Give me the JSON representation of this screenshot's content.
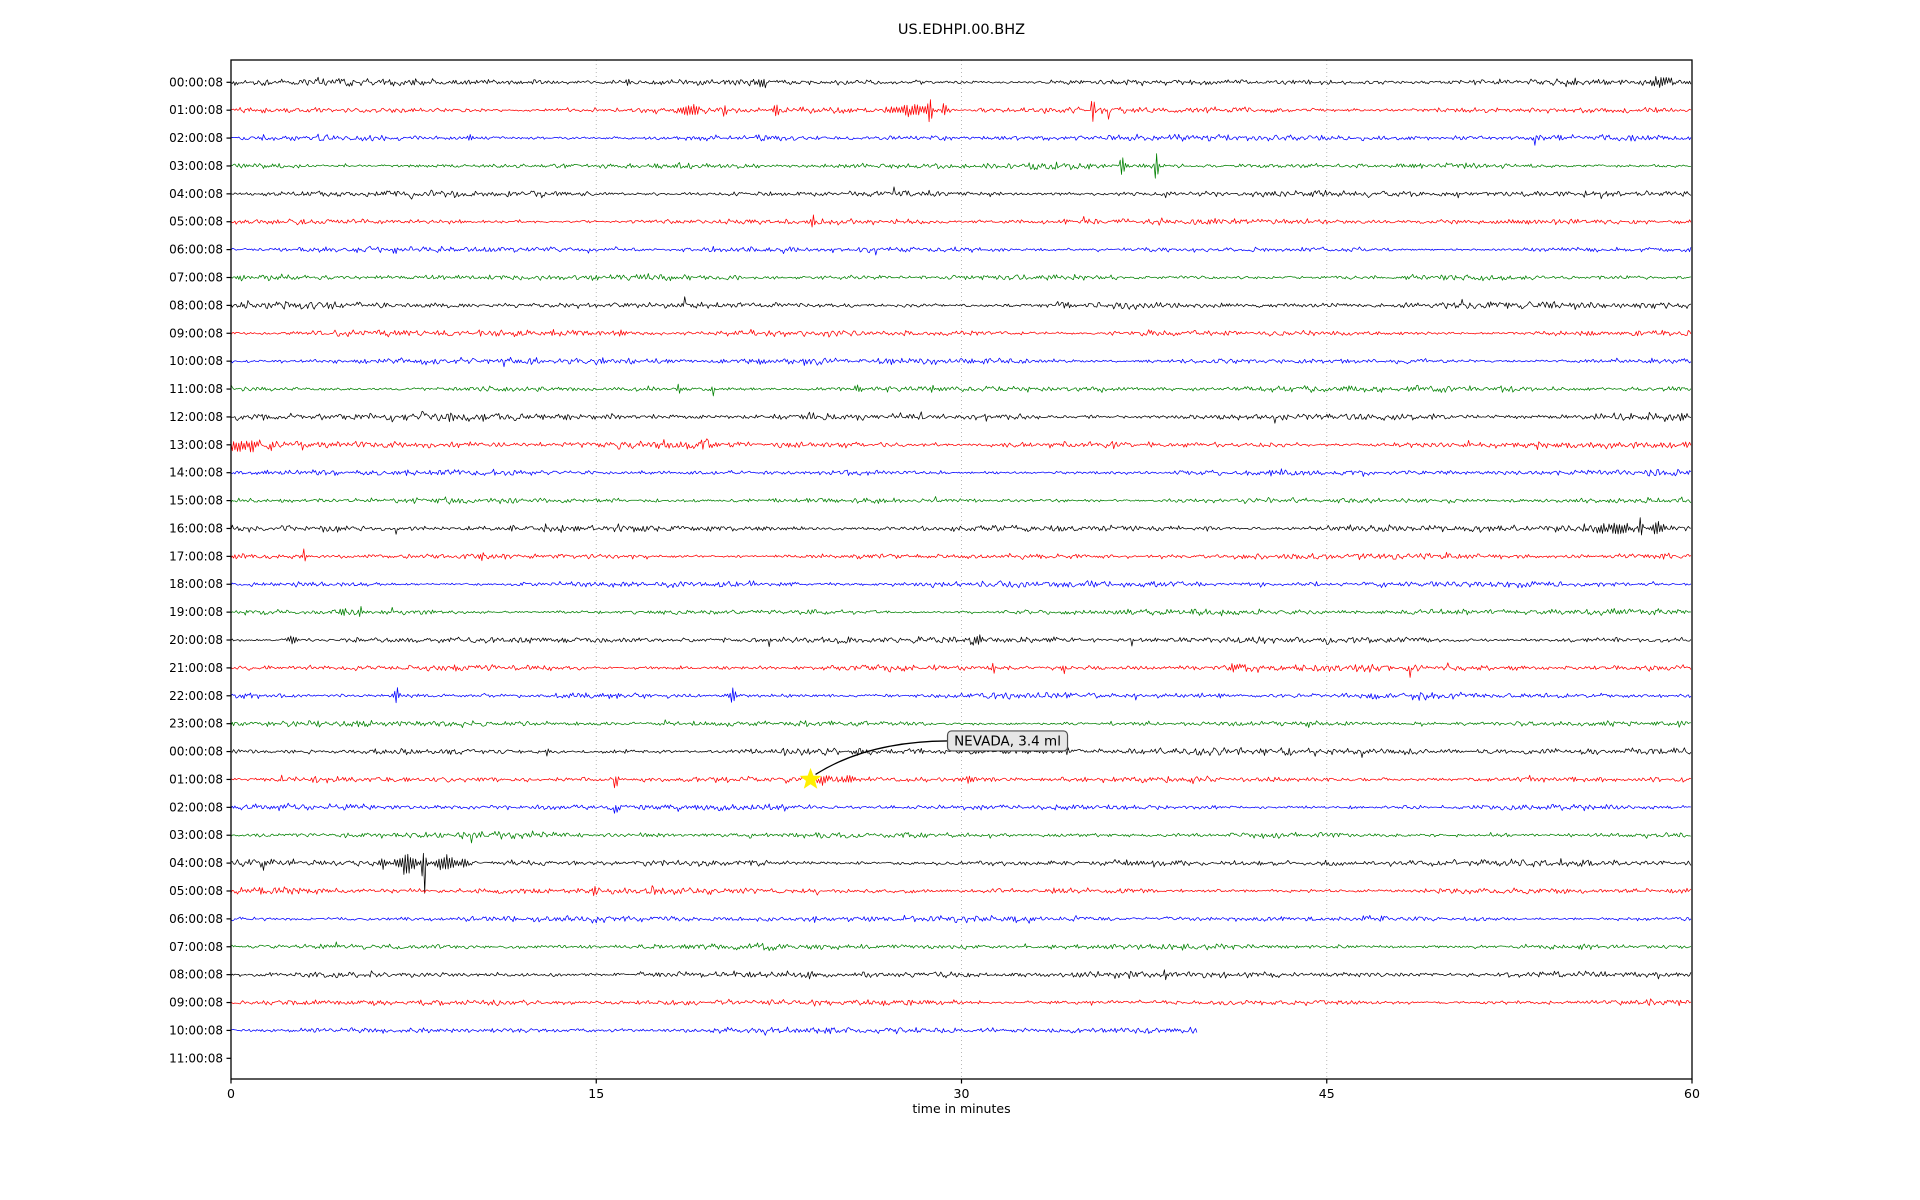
{
  "chart_data": {
    "type": "line",
    "subtype": "helicorder-day-plot",
    "title": "US.EDHPI.00.BHZ",
    "xlabel": "time in minutes",
    "xlim": [
      0,
      60
    ],
    "xticks": [
      "0",
      "15",
      "30",
      "45",
      "60"
    ],
    "xtick_values": [
      0,
      15,
      30,
      45,
      60
    ],
    "grid_x_minutes": [
      15,
      30,
      45
    ],
    "grid_style": "dotted",
    "legend": "none",
    "trace_color_cycle": [
      "#000000",
      "#ff0000",
      "#0000ff",
      "#008000"
    ],
    "annotation": {
      "text": "NEVADA, 3.4 ml",
      "row_index": 25,
      "t_minutes": 23.8,
      "marker": "star",
      "marker_color": "#ffef00",
      "box_fill": "#e6e6e6",
      "box_stroke": "#4d4d4d"
    },
    "rows": [
      {
        "label": "00:00:08",
        "color": "#000000",
        "amp": 2.6,
        "end": 60,
        "events": [
          {
            "t": 16.3,
            "d": 0.2,
            "a": 4
          },
          {
            "t": 21.8,
            "d": 0.5,
            "a": 5
          },
          {
            "t": 55.0,
            "d": 0.7,
            "a": 4
          },
          {
            "t": 58.8,
            "d": 1.0,
            "a": 5
          }
        ]
      },
      {
        "label": "01:00:08",
        "color": "#ff0000",
        "amp": 2.4,
        "end": 60,
        "events": [
          {
            "t": 18.9,
            "d": 1.2,
            "a": 4
          },
          {
            "t": 20.3,
            "d": 0.15,
            "a": 8,
            "down": true
          },
          {
            "t": 22.4,
            "d": 0.15,
            "a": 9
          },
          {
            "t": 27.9,
            "d": 1.8,
            "a": 6
          },
          {
            "t": 28.7,
            "d": 0.15,
            "a": 15
          },
          {
            "t": 29.3,
            "d": 0.2,
            "a": 10
          },
          {
            "t": 35.4,
            "d": 0.15,
            "a": 14
          },
          {
            "t": 36.0,
            "d": 0.2,
            "a": 8,
            "down": true
          }
        ]
      },
      {
        "label": "02:00:08",
        "color": "#0000ff",
        "amp": 2.4,
        "end": 60,
        "events": [
          {
            "t": 9.8,
            "d": 0.3,
            "a": 4
          }
        ]
      },
      {
        "label": "03:00:08",
        "color": "#008000",
        "amp": 2.3,
        "end": 60,
        "events": [
          {
            "t": 36.6,
            "d": 0.12,
            "a": 14
          },
          {
            "t": 38.0,
            "d": 0.12,
            "a": 16
          }
        ]
      },
      {
        "label": "04:00:08",
        "color": "#000000",
        "amp": 2.7,
        "end": 60,
        "events": []
      },
      {
        "label": "05:00:08",
        "color": "#ff0000",
        "amp": 2.4,
        "end": 60,
        "events": [
          {
            "t": 3.0,
            "d": 0.6,
            "a": 3
          },
          {
            "t": 23.9,
            "d": 0.12,
            "a": 7
          }
        ]
      },
      {
        "label": "06:00:08",
        "color": "#0000ff",
        "amp": 2.4,
        "end": 60,
        "events": [
          {
            "t": 6.7,
            "d": 0.2,
            "a": 4
          }
        ]
      },
      {
        "label": "07:00:08",
        "color": "#008000",
        "amp": 2.3,
        "end": 60,
        "events": []
      },
      {
        "label": "08:00:08",
        "color": "#000000",
        "amp": 2.8,
        "end": 60,
        "events": []
      },
      {
        "label": "09:00:08",
        "color": "#ff0000",
        "amp": 2.4,
        "end": 60,
        "events": [
          {
            "t": 13.2,
            "d": 0.4,
            "a": 3
          },
          {
            "t": 16.0,
            "d": 0.15,
            "a": 6
          }
        ]
      },
      {
        "label": "10:00:08",
        "color": "#0000ff",
        "amp": 2.6,
        "end": 60,
        "events": [
          {
            "t": 15.3,
            "d": 0.2,
            "a": 4
          },
          {
            "t": 21.7,
            "d": 0.3,
            "a": 3
          }
        ]
      },
      {
        "label": "11:00:08",
        "color": "#008000",
        "amp": 2.4,
        "end": 60,
        "events": [
          {
            "t": 18.4,
            "d": 0.2,
            "a": 5
          },
          {
            "t": 19.8,
            "d": 0.15,
            "a": 6,
            "down": true
          },
          {
            "t": 25.8,
            "d": 0.5,
            "a": 5
          },
          {
            "t": 28.8,
            "d": 0.2,
            "a": 4
          }
        ]
      },
      {
        "label": "12:00:08",
        "color": "#000000",
        "amp": 3.2,
        "end": 60,
        "events": []
      },
      {
        "label": "13:00:08",
        "color": "#ff0000",
        "amp": 3.0,
        "end": 60,
        "events": [
          {
            "t": 0.5,
            "d": 1.5,
            "a": 5
          },
          {
            "t": 1.6,
            "d": 0.15,
            "a": 8,
            "down": true
          }
        ]
      },
      {
        "label": "14:00:08",
        "color": "#0000ff",
        "amp": 2.4,
        "end": 60,
        "events": []
      },
      {
        "label": "15:00:08",
        "color": "#008000",
        "amp": 2.3,
        "end": 60,
        "events": []
      },
      {
        "label": "16:00:08",
        "color": "#000000",
        "amp": 3.0,
        "end": 60,
        "events": [
          {
            "t": 56.8,
            "d": 1.5,
            "a": 7
          },
          {
            "t": 57.9,
            "d": 0.15,
            "a": 14
          },
          {
            "t": 58.6,
            "d": 0.8,
            "a": 6
          }
        ]
      },
      {
        "label": "17:00:08",
        "color": "#ff0000",
        "amp": 2.5,
        "end": 60,
        "events": [
          {
            "t": 3.0,
            "d": 0.2,
            "a": 7
          },
          {
            "t": 10.3,
            "d": 0.25,
            "a": 6
          }
        ]
      },
      {
        "label": "18:00:08",
        "color": "#0000ff",
        "amp": 2.4,
        "end": 60,
        "events": []
      },
      {
        "label": "19:00:08",
        "color": "#008000",
        "amp": 2.3,
        "end": 60,
        "events": [
          {
            "t": 4.6,
            "d": 0.3,
            "a": 4
          },
          {
            "t": 5.3,
            "d": 0.2,
            "a": 6
          }
        ]
      },
      {
        "label": "20:00:08",
        "color": "#000000",
        "amp": 2.7,
        "end": 60,
        "events": [
          {
            "t": 2.5,
            "d": 0.5,
            "a": 4
          },
          {
            "t": 30.7,
            "d": 0.5,
            "a": 5
          },
          {
            "t": 37.0,
            "d": 0.12,
            "a": 7,
            "down": true
          }
        ]
      },
      {
        "label": "21:00:08",
        "color": "#ff0000",
        "amp": 2.6,
        "end": 60,
        "events": [
          {
            "t": 31.3,
            "d": 0.15,
            "a": 7
          },
          {
            "t": 34.2,
            "d": 0.15,
            "a": 7,
            "down": true
          },
          {
            "t": 41.2,
            "d": 0.8,
            "a": 4
          },
          {
            "t": 48.4,
            "d": 0.12,
            "a": 9,
            "down": true
          }
        ]
      },
      {
        "label": "22:00:08",
        "color": "#0000ff",
        "amp": 2.4,
        "end": 60,
        "events": [
          {
            "t": 6.8,
            "d": 0.2,
            "a": 9
          },
          {
            "t": 20.6,
            "d": 0.3,
            "a": 8
          }
        ]
      },
      {
        "label": "23:00:08",
        "color": "#008000",
        "amp": 2.3,
        "end": 60,
        "events": [
          {
            "t": 44.2,
            "d": 0.2,
            "a": 9,
            "down": true
          }
        ]
      },
      {
        "label": "00:00:08",
        "color": "#000000",
        "amp": 2.7,
        "end": 60,
        "events": [
          {
            "t": 13.0,
            "d": 0.2,
            "a": 5
          },
          {
            "t": 34.3,
            "d": 0.2,
            "a": 5
          },
          {
            "t": 42.5,
            "d": 0.2,
            "a": 6
          }
        ]
      },
      {
        "label": "01:00:08",
        "color": "#ff0000",
        "amp": 2.5,
        "end": 60,
        "events": [
          {
            "t": 15.8,
            "d": 0.2,
            "a": 12,
            "down": true
          },
          {
            "t": 24.3,
            "d": 0.6,
            "a": 4
          },
          {
            "t": 25.2,
            "d": 0.8,
            "a": 4
          },
          {
            "t": 30.3,
            "d": 0.3,
            "a": 5
          }
        ]
      },
      {
        "label": "02:00:08",
        "color": "#0000ff",
        "amp": 2.4,
        "end": 60,
        "events": [
          {
            "t": 15.8,
            "d": 0.15,
            "a": 9,
            "down": true
          }
        ]
      },
      {
        "label": "03:00:08",
        "color": "#008000",
        "amp": 2.3,
        "end": 60,
        "events": []
      },
      {
        "label": "04:00:08",
        "color": "#000000",
        "amp": 2.7,
        "end": 60,
        "events": [
          {
            "t": 6.2,
            "d": 0.4,
            "a": 5
          },
          {
            "t": 7.2,
            "d": 0.9,
            "a": 12
          },
          {
            "t": 7.93,
            "d": 0.1,
            "a": 38,
            "down": true
          },
          {
            "t": 8.8,
            "d": 1.0,
            "a": 7
          },
          {
            "t": 9.6,
            "d": 0.6,
            "a": 4
          }
        ]
      },
      {
        "label": "05:00:08",
        "color": "#ff0000",
        "amp": 2.4,
        "end": 60,
        "events": [
          {
            "t": 14.9,
            "d": 0.2,
            "a": 7
          }
        ]
      },
      {
        "label": "06:00:08",
        "color": "#0000ff",
        "amp": 2.5,
        "end": 60,
        "events": []
      },
      {
        "label": "07:00:08",
        "color": "#008000",
        "amp": 2.3,
        "end": 60,
        "events": []
      },
      {
        "label": "08:00:08",
        "color": "#000000",
        "amp": 2.6,
        "end": 60,
        "events": []
      },
      {
        "label": "09:00:08",
        "color": "#ff0000",
        "amp": 2.4,
        "end": 60,
        "events": []
      },
      {
        "label": "10:00:08",
        "color": "#0000ff",
        "amp": 2.5,
        "end": 39.7,
        "events": []
      },
      {
        "label": "11:00:08",
        "color": "#008000",
        "amp": 0,
        "end": 0,
        "empty": true,
        "events": []
      }
    ]
  }
}
